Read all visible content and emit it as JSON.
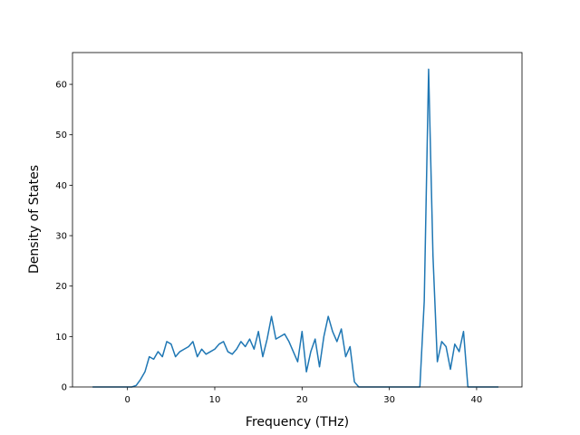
{
  "chart_data": {
    "type": "line",
    "xlabel": "Frequency (THz)",
    "ylabel": "Density of States",
    "x": [
      -4,
      -3.5,
      -3,
      -2.5,
      -2,
      -1.5,
      -1,
      -0.5,
      0,
      0.5,
      1,
      1.5,
      2,
      2.5,
      3,
      3.5,
      4,
      4.5,
      5,
      5.5,
      6,
      6.5,
      7,
      7.5,
      8,
      8.5,
      9,
      9.5,
      10,
      10.5,
      11,
      11.5,
      12,
      12.5,
      13,
      13.5,
      14,
      14.5,
      15,
      15.5,
      16,
      16.5,
      17,
      17.5,
      18,
      18.5,
      19,
      19.5,
      20,
      20.5,
      21,
      21.5,
      22,
      22.5,
      23,
      23.5,
      24,
      24.5,
      25,
      25.5,
      26,
      26.5,
      27,
      27.5,
      28,
      28.5,
      29,
      29.5,
      30,
      30.5,
      31,
      31.5,
      32,
      32.5,
      33,
      33.5,
      34,
      34.5,
      35,
      35.5,
      36,
      36.5,
      37,
      37.5,
      38,
      38.5,
      39,
      39.5,
      40,
      40.5,
      41,
      41.5,
      42,
      42.5
    ],
    "series": [
      {
        "color": "#1f77b4",
        "values": [
          0,
          0,
          0,
          0,
          0,
          0,
          0,
          0,
          0,
          0,
          0.3,
          1.5,
          3,
          6,
          5.5,
          7,
          6,
          9,
          8.5,
          6,
          7,
          7.5,
          8,
          9,
          6,
          7.5,
          6.5,
          7,
          7.5,
          8.5,
          9,
          7,
          6.5,
          7.5,
          9,
          8,
          9.5,
          7.5,
          11,
          6,
          9.5,
          14,
          9.5,
          10,
          10.5,
          9,
          7,
          5,
          11,
          3,
          7,
          9.5,
          4,
          10,
          14,
          11,
          9,
          11.5,
          6,
          8,
          1,
          0,
          0,
          0,
          0,
          0,
          0,
          0,
          0,
          0,
          0,
          0,
          0,
          0,
          0,
          0,
          17,
          63,
          26,
          5,
          9,
          8,
          3.5,
          8.5,
          7,
          11,
          0,
          0,
          0,
          0,
          0,
          0,
          0,
          0
        ]
      }
    ],
    "xlim": [
      -6.3,
      45.2
    ],
    "ylim": [
      0,
      66.3
    ],
    "xticks": [
      0,
      10,
      20,
      30,
      40
    ],
    "yticks": [
      0,
      10,
      20,
      30,
      40,
      50,
      60
    ]
  }
}
